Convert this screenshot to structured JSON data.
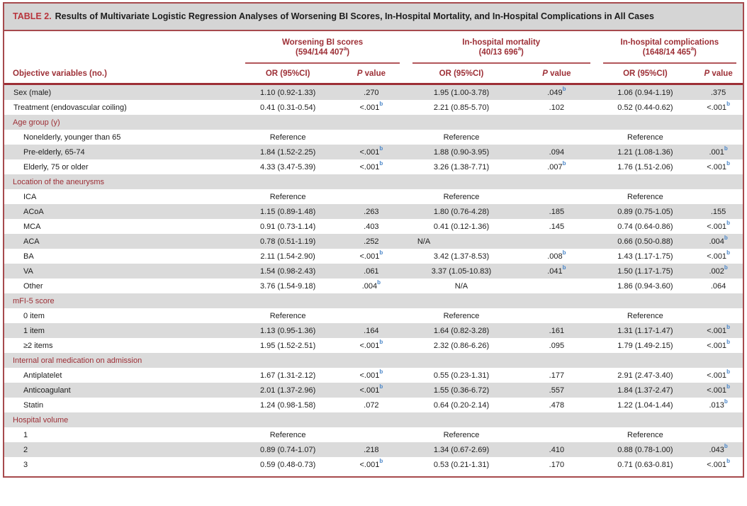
{
  "colors": {
    "accent_red": "#9d2f36",
    "border_red": "#a64a4d",
    "footnote_blue": "#4a86c8",
    "row_shade": "#dbdbdb",
    "caption_bg": "#d5d5d5"
  },
  "title": {
    "label": "TABLE 2.",
    "text": "Results of Multivariate Logistic Regression Analyses of Worsening BI Scores, In-Hospital Mortality, and In-Hospital Complications in All Cases"
  },
  "table": {
    "row_header": "Objective variables (no.)",
    "col_headers": {
      "or": "OR (95%CI)",
      "p_italic": "P",
      "p_rest": " value"
    },
    "groups": [
      {
        "name": "Worsening BI scores",
        "count": "(594/144 407^a)"
      },
      {
        "name": "In-hospital mortality",
        "count": "(40/13 696^a)"
      },
      {
        "name": "In-hospital complications",
        "count": "(1648/14 465^a)"
      }
    ],
    "rows": [
      {
        "type": "data",
        "label": "Sex (male)",
        "indent": false,
        "cells": [
          "1.10 (0.92-1.33)",
          ".270",
          "1.95 (1.00-3.78)",
          ".049^b",
          "1.06 (0.94-1.19)",
          ".375"
        ]
      },
      {
        "type": "data",
        "label": "Treatment (endovascular coiling)",
        "indent": false,
        "cells": [
          "0.41 (0.31-0.54)",
          "<.001^b",
          "2.21 (0.85-5.70)",
          ".102",
          "0.52 (0.44-0.62)",
          "<.001^b"
        ]
      },
      {
        "type": "section",
        "label": "Age group (y)"
      },
      {
        "type": "data",
        "label": "Nonelderly, younger than 65",
        "indent": true,
        "cells": [
          "Reference",
          "",
          "Reference",
          "",
          "Reference",
          ""
        ]
      },
      {
        "type": "data",
        "label": "Pre-elderly, 65-74",
        "indent": true,
        "cells": [
          "1.84 (1.52-2.25)",
          "<.001^b",
          "1.88 (0.90-3.95)",
          ".094",
          "1.21 (1.08-1.36)",
          ".001^b"
        ]
      },
      {
        "type": "data",
        "label": "Elderly, 75 or older",
        "indent": true,
        "cells": [
          "4.33 (3.47-5.39)",
          "<.001^b",
          "3.26 (1.38-7.71)",
          ".007^b",
          "1.76 (1.51-2.06)",
          "<.001^b"
        ]
      },
      {
        "type": "section",
        "label": "Location of the aneurysms"
      },
      {
        "type": "data",
        "label": "ICA",
        "indent": true,
        "cells": [
          "Reference",
          "",
          "Reference",
          "",
          "Reference",
          ""
        ]
      },
      {
        "type": "data",
        "label": "ACoA",
        "indent": true,
        "cells": [
          "1.15 (0.89-1.48)",
          ".263",
          "1.80 (0.76-4.28)",
          ".185",
          "0.89 (0.75-1.05)",
          ".155"
        ]
      },
      {
        "type": "data",
        "label": "MCA",
        "indent": true,
        "cells": [
          "0.91 (0.73-1.14)",
          ".403",
          "0.41 (0.12-1.36)",
          ".145",
          "0.74 (0.64-0.86)",
          "<.001^b"
        ]
      },
      {
        "type": "data",
        "label": "ACA",
        "indent": true,
        "cells": [
          "0.78 (0.51-1.19)",
          ".252",
          {
            "text": "N/A",
            "align": "left"
          },
          "",
          "0.66 (0.50-0.88)",
          ".004^b"
        ]
      },
      {
        "type": "data",
        "label": "BA",
        "indent": true,
        "cells": [
          "2.11 (1.54-2.90)",
          "<.001^b",
          "3.42 (1.37-8.53)",
          ".008^b",
          "1.43 (1.17-1.75)",
          "<.001^b"
        ]
      },
      {
        "type": "data",
        "label": "VA",
        "indent": true,
        "cells": [
          "1.54 (0.98-2.43)",
          ".061",
          "3.37 (1.05-10.83)",
          ".041^b",
          "1.50 (1.17-1.75)",
          ".002^b"
        ]
      },
      {
        "type": "data",
        "label": "Other",
        "indent": true,
        "cells": [
          "3.76 (1.54-9.18)",
          ".004^b",
          "N/A",
          "",
          "1.86 (0.94-3.60)",
          ".064"
        ]
      },
      {
        "type": "section",
        "label": "mFI-5 score"
      },
      {
        "type": "data",
        "label": "0 item",
        "indent": true,
        "cells": [
          "Reference",
          "",
          "Reference",
          "",
          "Reference",
          ""
        ]
      },
      {
        "type": "data",
        "label": "1 item",
        "indent": true,
        "cells": [
          "1.13 (0.95-1.36)",
          ".164",
          "1.64 (0.82-3.28)",
          ".161",
          "1.31 (1.17-1.47)",
          "<.001^b"
        ]
      },
      {
        "type": "data",
        "label": "≥2 items",
        "indent": true,
        "cells": [
          "1.95 (1.52-2.51)",
          "<.001^b",
          "2.32 (0.86-6.26)",
          ".095",
          "1.79 (1.49-2.15)",
          "<.001^b"
        ]
      },
      {
        "type": "section",
        "label": "Internal oral medication on admission"
      },
      {
        "type": "data",
        "label": "Antiplatelet",
        "indent": true,
        "cells": [
          "1.67 (1.31-2.12)",
          "<.001^b",
          "0.55 (0.23-1.31)",
          ".177",
          "2.91 (2.47-3.40)",
          "<.001^b"
        ]
      },
      {
        "type": "data",
        "label": "Anticoagulant",
        "indent": true,
        "cells": [
          "2.01 (1.37-2.96)",
          "<.001^b",
          "1.55 (0.36-6.72)",
          ".557",
          "1.84 (1.37-2.47)",
          "<.001^b"
        ]
      },
      {
        "type": "data",
        "label": "Statin",
        "indent": true,
        "cells": [
          "1.24 (0.98-1.58)",
          ".072",
          "0.64 (0.20-2.14)",
          ".478",
          "1.22 (1.04-1.44)",
          ".013^b"
        ]
      },
      {
        "type": "section",
        "label": "Hospital volume"
      },
      {
        "type": "data",
        "label": "1",
        "indent": true,
        "cells": [
          "Reference",
          "",
          "Reference",
          "",
          "Reference",
          ""
        ]
      },
      {
        "type": "data",
        "label": "2",
        "indent": true,
        "cells": [
          "0.89 (0.74-1.07)",
          ".218",
          "1.34 (0.67-2.69)",
          ".410",
          "0.88 (0.78-1.00)",
          ".043^b"
        ]
      },
      {
        "type": "data",
        "label": "3",
        "indent": true,
        "cells": [
          "0.59 (0.48-0.73)",
          "<.001^b",
          "0.53 (0.21-1.31)",
          ".170",
          "0.71 (0.63-0.81)",
          "<.001^b"
        ]
      }
    ]
  }
}
